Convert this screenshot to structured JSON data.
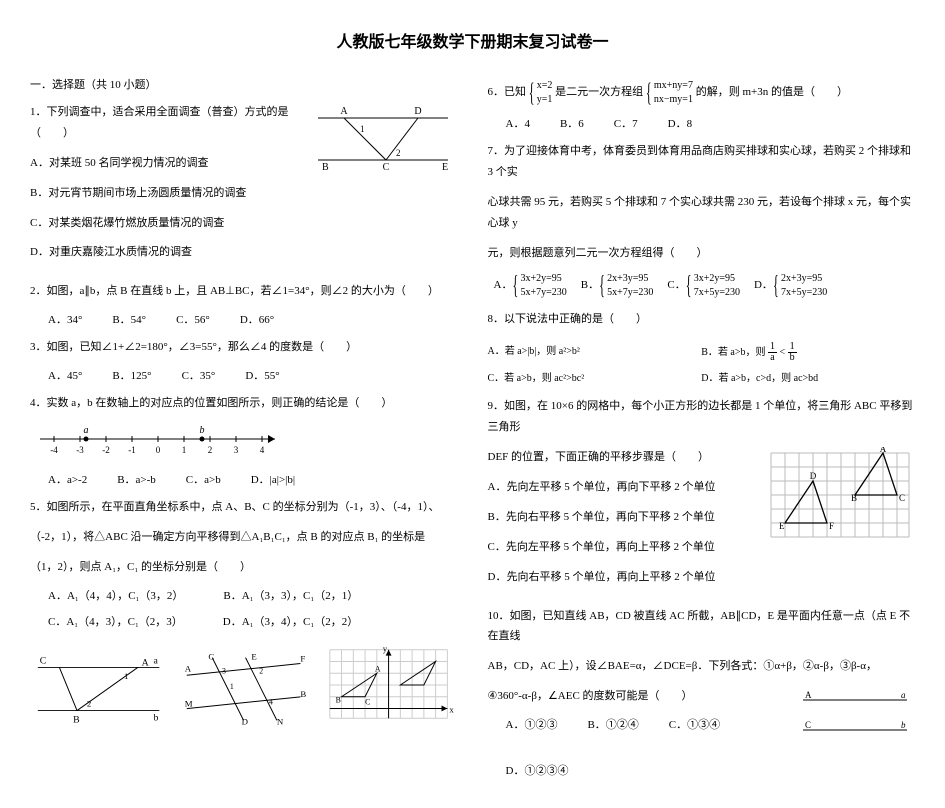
{
  "title": "人教版七年级数学下册期末复习试卷一",
  "section1": "一．选择题（共 10 小题）",
  "q1": {
    "stem": "1．下列调查中，适合采用全面调查（普查）方式的是（　　）",
    "A": "A．对某班 50 名同学视力情况的调查",
    "B": "B．对元宵节期间市场上汤圆质量情况的调查",
    "C": "C．对某类烟花爆竹燃放质量情况的调查",
    "D": "D．对重庆嘉陵江水质情况的调查"
  },
  "q2": {
    "stem": "2．如图，a∥b，点 B 在直线 b 上，且 AB⊥BC，若∠1=34°，则∠2 的大小为（　　）",
    "A": "A．34°",
    "B": "B．54°",
    "C": "C．56°",
    "D": "D．66°"
  },
  "q3": {
    "stem": "3．如图，已知∠1+∠2=180°，∠3=55°，那么∠4 的度数是（　　）",
    "A": "A．45°",
    "B": "B．125°",
    "C": "C．35°",
    "D": "D．55°"
  },
  "q4": {
    "stem": "4．实数 a，b 在数轴上的对应点的位置如图所示，则正确的结论是（　　）",
    "A": "A．a>-2",
    "B": "B．a>-b",
    "C": "C．a>b",
    "D": "D．|a|>|b|"
  },
  "q5": {
    "stem1": "5．如图所示，在平面直角坐标系中，点 A、B、C 的坐标分别为（-1，3）、（-4，1）、",
    "stem2": "（-2，1），将△ABC 沿一确定方向平移得到△A₁B₁C₁，点 B 的对应点 B₁ 的坐标是",
    "stem3": "（1，2），则点 A₁，C₁ 的坐标分别是（　　）",
    "A": "A．A₁（4，4），C₁（3，2）",
    "B": "B．A₁（3，3），C₁（2，1）",
    "C": "C．A₁（4，3），C₁（2，3）",
    "D": "D．A₁（3，4），C₁（2，2）"
  },
  "q6": {
    "prefix": "6．已知",
    "sys1a": "x=2",
    "sys1b": "y=1",
    "mid1": "是二元一次方程组",
    "sys2a": "mx+ny=7",
    "sys2b": "nx−my=1",
    "suffix": "的解，则 m+3n 的值是（　　）",
    "A": "A．4",
    "B": "B．6",
    "C": "C．7",
    "D": "D．8"
  },
  "q7": {
    "l1": "7．为了迎接体育中考，体育委员到体育用品商店购买排球和实心球，若购买 2 个排球和 3 个实",
    "l2": "心球共需 95 元，若购买 5 个排球和 7 个实心球共需 230 元，若设每个排球 x 元，每个实心球 y",
    "l3": "元，则根据题意列二元一次方程组得（　　）",
    "A": {
      "a": "3x+2y=95",
      "b": "5x+7y=230"
    },
    "B": {
      "a": "2x+3y=95",
      "b": "5x+7y=230"
    },
    "C": {
      "a": "3x+2y=95",
      "b": "7x+5y=230"
    },
    "D": {
      "a": "2x+3y=95",
      "b": "7x+5y=230"
    }
  },
  "q8": {
    "stem": "8．以下说法中正确的是（　　）",
    "A": "A．若 a>|b|，则 a²>b²",
    "B_pre": "B．若 a>b，则",
    "B_post": "",
    "C": "C．若 a>b，则 ac²>bc²",
    "D": "D．若 a>b，c>d，则 ac>bd"
  },
  "q9": {
    "l1": "9．如图，在 10×6 的网格中，每个小正方形的边长都是 1 个单位，将三角形 ABC 平移到三角形",
    "l2": "DEF 的位置，下面正确的平移步骤是（　　）",
    "A": "A．先向左平移 5 个单位，再向下平移 2 个单位",
    "B": "B．先向右平移 5 个单位，再向下平移 2 个单位",
    "C": "C．先向左平移 5 个单位，再向上平移 2 个单位",
    "D": "D．先向右平移 5 个单位，再向上平移 2 个单位"
  },
  "q10": {
    "l1": "10．如图，已知直线 AB，CD 被直线 AC 所截，AB∥CD，E 是平面内任意一点（点 E 不在直线",
    "l2": "AB，CD，AC 上），设∠BAE=α，∠DCE=β．下列各式：①α+β，②α-β，③β-α，",
    "l3": "④360°-α-β，∠AEC 的度数可能是（　　）",
    "A": "A．①②③",
    "B": "B．①②④",
    "C": "C．①③④",
    "D": "D．①②③④"
  },
  "labels": {
    "A": "A",
    "B": "B",
    "C": "C",
    "D": "D",
    "E": "E",
    "F": "F",
    "M": "M",
    "N": "N",
    "a": "a",
    "b": "b",
    "x": "x",
    "y": "y",
    "n1": "1",
    "n2": "2",
    "n3": "3",
    "n4": "4",
    "n5": "5"
  },
  "numline": {
    "ticks": [
      "-4",
      "-3",
      "-2",
      "-1",
      "0",
      "1",
      "2",
      "3",
      "4"
    ]
  },
  "colors": {
    "stroke": "#000000",
    "bg": "#ffffff"
  }
}
